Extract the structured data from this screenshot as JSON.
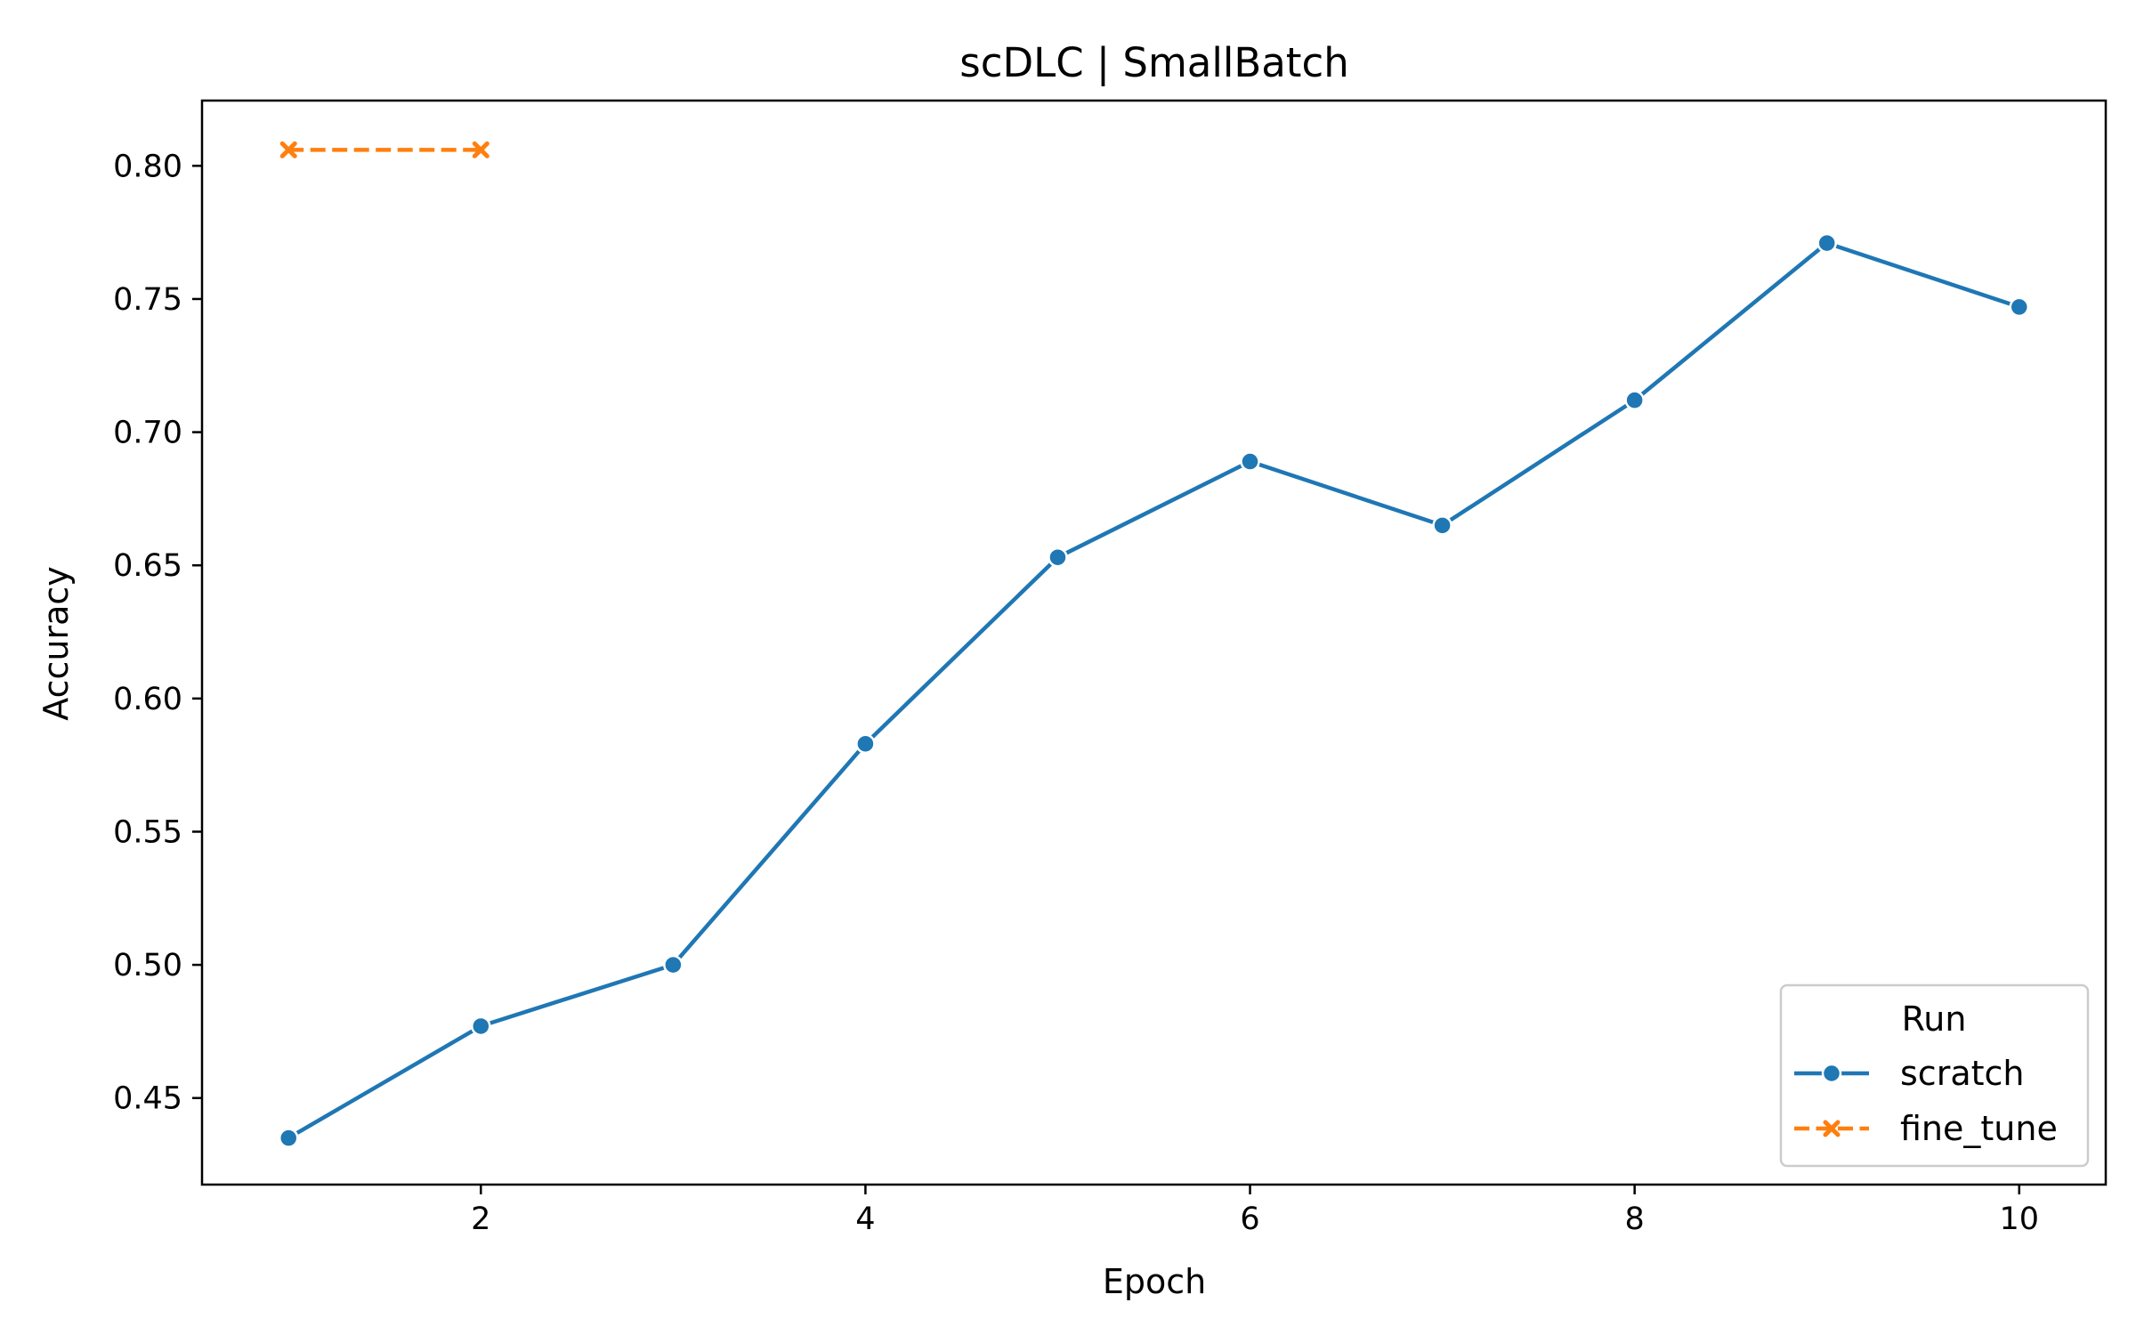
{
  "chart_data": {
    "type": "line",
    "title": "scDLC | SmallBatch",
    "xlabel": "Epoch",
    "ylabel": "Accuracy",
    "xlim": [
      0.55,
      10.45
    ],
    "ylim": [
      0.4175,
      0.8245
    ],
    "xticks": [
      2,
      4,
      6,
      8,
      10
    ],
    "xtick_labels": [
      "2",
      "4",
      "6",
      "8",
      "10"
    ],
    "yticks": [
      0.45,
      0.5,
      0.55,
      0.6,
      0.65,
      0.7,
      0.75,
      0.8
    ],
    "ytick_labels": [
      "0.45",
      "0.50",
      "0.55",
      "0.60",
      "0.65",
      "0.70",
      "0.75",
      "0.80"
    ],
    "grid": false,
    "legend": {
      "title": "Run",
      "position": "lower-right"
    },
    "series": [
      {
        "name": "scratch",
        "color": "#1f77b4",
        "marker": "circle",
        "linestyle": "solid",
        "x": [
          1,
          2,
          3,
          4,
          5,
          6,
          7,
          8,
          9,
          10
        ],
        "y": [
          0.435,
          0.477,
          0.5,
          0.583,
          0.653,
          0.689,
          0.665,
          0.712,
          0.771,
          0.747
        ]
      },
      {
        "name": "fine_tune",
        "color": "#ff7f0e",
        "marker": "x",
        "linestyle": "dashed",
        "x": [
          1,
          2
        ],
        "y": [
          0.806,
          0.806
        ]
      }
    ]
  }
}
